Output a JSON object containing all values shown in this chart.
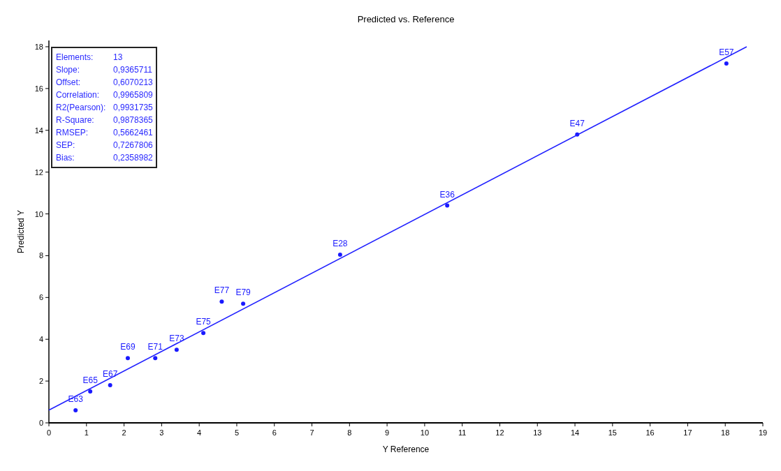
{
  "chart_data": {
    "type": "scatter",
    "title": "Predicted vs. Reference",
    "xlabel": "Y Reference",
    "ylabel": "Predicted Y",
    "xlim": [
      0,
      19
    ],
    "xticks": [
      0,
      1,
      2,
      3,
      4,
      5,
      6,
      7,
      8,
      9,
      10,
      11,
      12,
      13,
      14,
      15,
      16,
      17,
      18,
      19
    ],
    "ylim": [
      0,
      18.3
    ],
    "yticks": [
      0,
      2,
      4,
      6,
      8,
      10,
      12,
      14,
      16,
      18
    ],
    "grid": false,
    "marker": "circle",
    "annotations": [
      "Elements: 13",
      "Slope: 0,9365711",
      "Offset: 0,6070213",
      "Correlation: 0,9965809",
      "R2(Pearson): 0,9931735",
      "R-Square: 0,9878365",
      "RMSEP: 0,5662461",
      "SEP: 0,7267806",
      "Bias: 0,2358982"
    ],
    "series": [
      {
        "color": "#1a1aff",
        "x": [
          0.71,
          1.1,
          1.63,
          2.1,
          2.83,
          3.4,
          4.11,
          4.6,
          5.17,
          7.75,
          10.6,
          14.06,
          18.03
        ],
        "values": [
          0.6,
          1.5,
          1.8,
          3.1,
          3.1,
          3.5,
          4.3,
          5.8,
          5.7,
          8.05,
          10.4,
          13.8,
          17.2
        ],
        "value_labels": [
          "E63",
          "E65",
          "E67",
          "E69",
          "E71",
          "E73",
          "E75",
          "E77",
          "E79",
          "E28",
          "E36",
          "E47",
          "E57"
        ]
      },
      {
        "type": "line",
        "color": "#2020ff",
        "line_style": "solid",
        "marker": "none",
        "x": [
          0,
          18.57
        ],
        "values": [
          0.61,
          18.0
        ]
      }
    ]
  }
}
